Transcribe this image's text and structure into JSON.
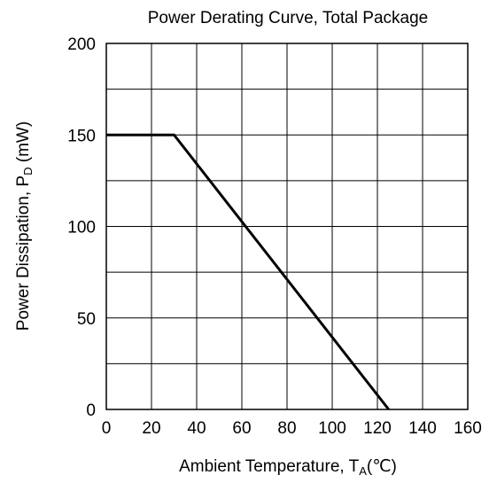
{
  "chart_data": {
    "type": "line",
    "title": "Power Derating Curve, Total Package",
    "xlabel": {
      "main": "Ambient Temperature, T",
      "sub": "A",
      "unit": "(℃)"
    },
    "ylabel": {
      "main": "Power Dissipation, P",
      "sub": "D",
      "unit": " (mW)"
    },
    "xlim": [
      0,
      160
    ],
    "ylim": [
      0,
      200
    ],
    "x_ticks": [
      0,
      20,
      40,
      60,
      80,
      100,
      120,
      140,
      160
    ],
    "y_ticks": [
      0,
      50,
      100,
      150,
      200
    ],
    "x_grid_step": 20,
    "y_grid_step": 25,
    "grid": true,
    "series": [
      {
        "points": [
          [
            0,
            150
          ],
          [
            30,
            150
          ],
          [
            125,
            0
          ]
        ]
      }
    ]
  }
}
